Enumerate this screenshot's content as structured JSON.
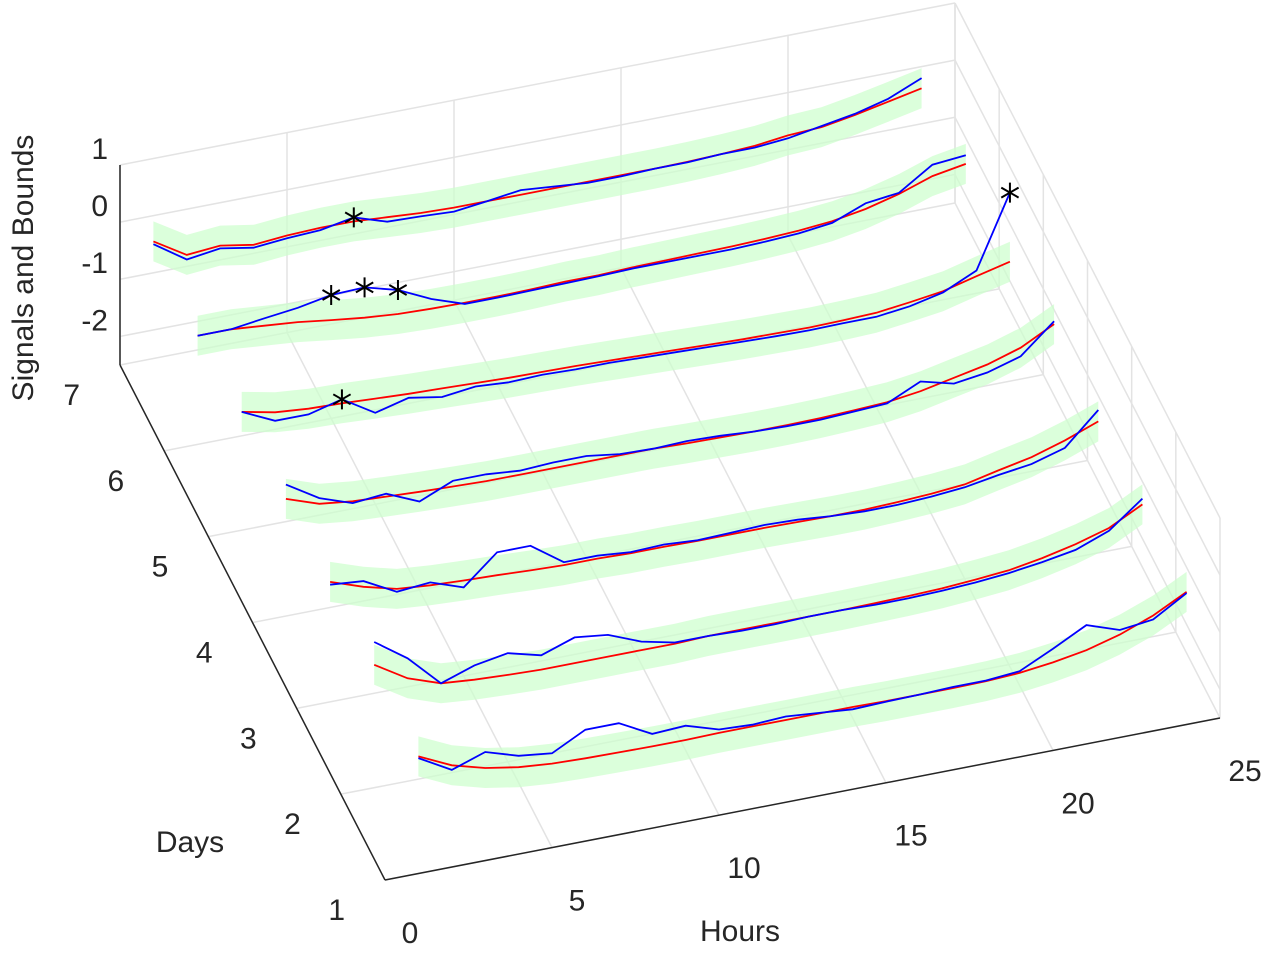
{
  "chart_data": {
    "type": "line3d",
    "xlabel": "Hours",
    "ylabel": "Days",
    "zlabel": "Signals and Bounds",
    "xlim": [
      0,
      25
    ],
    "xticks": [
      0,
      5,
      10,
      15,
      20,
      25
    ],
    "ylim": [
      1,
      7
    ],
    "yticks": [
      1,
      2,
      3,
      4,
      5,
      6,
      7
    ],
    "zlim": [
      -2.5,
      1
    ],
    "zticks": [
      -2,
      -1,
      0,
      1
    ],
    "grid": true,
    "signal_color": "#0000ff",
    "center_color": "#ff0000",
    "band_color": "#ccffcc",
    "anomaly_color": "#000000",
    "x": [
      1,
      2,
      3,
      4,
      5,
      6,
      7,
      8,
      9,
      10,
      11,
      12,
      13,
      14,
      15,
      16,
      17,
      18,
      19,
      20,
      21,
      22,
      23,
      24
    ],
    "series": [
      {
        "day": 1,
        "bound": 0.35,
        "center": [
          -0.45,
          -0.72,
          -0.88,
          -0.98,
          -1.03,
          -1.05,
          -1.06,
          -1.07,
          -1.07,
          -1.06,
          -1.06,
          -1.06,
          -1.06,
          -1.06,
          -1.07,
          -1.07,
          -1.07,
          -1.06,
          -1.03,
          -0.96,
          -0.86,
          -0.7,
          -0.48,
          -0.18
        ],
        "signal": [
          -0.48,
          -0.8,
          -0.6,
          -0.78,
          -0.85,
          -0.55,
          -0.55,
          -0.85,
          -0.82,
          -1.0,
          -1.03,
          -1.0,
          -1.05,
          -1.1,
          -1.08,
          -1.07,
          -1.05,
          -1.05,
          -1.0,
          -0.72,
          -0.42,
          -0.62,
          -0.55,
          -0.2
        ]
      },
      {
        "day": 2,
        "bound": 0.35,
        "center": [
          -0.35,
          -0.7,
          -0.9,
          -0.95,
          -0.98,
          -1.0,
          -1.0,
          -1.0,
          -1.0,
          -1.0,
          -0.98,
          -0.98,
          -0.98,
          -0.98,
          -0.98,
          -0.97,
          -0.96,
          -0.94,
          -0.9,
          -0.85,
          -0.75,
          -0.62,
          -0.45,
          -0.15
        ],
        "signal": [
          0.05,
          -0.35,
          -0.9,
          -0.7,
          -0.6,
          -0.75,
          -0.55,
          -0.62,
          -0.85,
          -0.98,
          -0.98,
          -1.0,
          -1.0,
          -0.98,
          -0.98,
          -1.0,
          -1.0,
          -0.98,
          -0.95,
          -0.9,
          -0.82,
          -0.72,
          -0.5,
          -0.05
        ]
      },
      {
        "day": 3,
        "bound": 0.35,
        "center": [
          -0.4,
          -0.6,
          -0.75,
          -0.8,
          -0.83,
          -0.85,
          -0.88,
          -0.9,
          -0.9,
          -0.92,
          -0.92,
          -0.93,
          -0.93,
          -0.93,
          -0.94,
          -0.95,
          -0.95,
          -0.93,
          -0.9,
          -0.85,
          -0.72,
          -0.6,
          -0.42,
          -0.2
        ],
        "signal": [
          -0.45,
          -0.5,
          -0.8,
          -0.75,
          -0.95,
          -0.45,
          -0.45,
          -0.85,
          -0.85,
          -0.9,
          -0.88,
          -0.92,
          -0.9,
          -0.88,
          -0.9,
          -0.95,
          -0.98,
          -0.98,
          -0.95,
          -0.9,
          -0.8,
          -0.72,
          -0.55,
          0.0
        ]
      },
      {
        "day": 4,
        "bound": 0.35,
        "center": [
          -0.45,
          -0.65,
          -0.72,
          -0.75,
          -0.78,
          -0.8,
          -0.82,
          -0.82,
          -0.82,
          -0.82,
          -0.82,
          -0.82,
          -0.84,
          -0.85,
          -0.86,
          -0.86,
          -0.85,
          -0.83,
          -0.8,
          -0.72,
          -0.6,
          -0.48,
          -0.3,
          0.0
        ],
        "signal": [
          -0.2,
          -0.55,
          -0.75,
          -0.7,
          -0.95,
          -0.7,
          -0.7,
          -0.75,
          -0.72,
          -0.72,
          -0.8,
          -0.82,
          -0.8,
          -0.82,
          -0.86,
          -0.88,
          -0.88,
          -0.85,
          -0.82,
          -0.55,
          -0.7,
          -0.62,
          -0.45,
          0.05
        ]
      },
      {
        "day": 5,
        "bound": 0.35,
        "center": [
          -0.43,
          -0.55,
          -0.6,
          -0.62,
          -0.65,
          -0.68,
          -0.7,
          -0.72,
          -0.74,
          -0.75,
          -0.76,
          -0.78,
          -0.8,
          -0.82,
          -0.84,
          -0.86,
          -0.87,
          -0.88,
          -0.87,
          -0.85,
          -0.78,
          -0.7,
          -0.55,
          -0.41
        ],
        "signal": [
          -0.43,
          -0.7,
          -0.7,
          -0.55,
          -0.9,
          -0.75,
          -0.85,
          -0.78,
          -0.82,
          -0.8,
          -0.82,
          -0.82,
          -0.84,
          -0.86,
          -0.88,
          -0.9,
          -0.92,
          -0.93,
          -0.92,
          -0.92,
          -0.85,
          -0.72,
          -0.45,
          0.8
        ]
      },
      {
        "day": 6,
        "bound": 0.35,
        "center": [
          -0.6,
          -0.6,
          -0.65,
          -0.7,
          -0.78,
          -0.85,
          -0.9,
          -0.92,
          -0.93,
          -0.93,
          -0.92,
          -0.9,
          -0.9,
          -0.88,
          -0.87,
          -0.86,
          -0.85,
          -0.83,
          -0.8,
          -0.75,
          -0.65,
          -0.5,
          -0.3,
          -0.2
        ],
        "signal": [
          -0.6,
          -0.6,
          -0.52,
          -0.45,
          -0.34,
          -0.32,
          -0.48,
          -0.75,
          -0.95,
          -0.95,
          -0.94,
          -0.93,
          -0.92,
          -0.9,
          -0.9,
          -0.9,
          -0.9,
          -0.88,
          -0.85,
          -0.78,
          -0.55,
          -0.48,
          -0.1,
          -0.05
        ]
      },
      {
        "day": 7,
        "bound": 0.35,
        "center": [
          -0.45,
          -0.8,
          -0.75,
          -0.85,
          -0.8,
          -0.78,
          -0.78,
          -0.82,
          -0.86,
          -0.88,
          -0.88,
          -0.88,
          -0.88,
          -0.88,
          -0.88,
          -0.88,
          -0.87,
          -0.85,
          -0.82,
          -0.75,
          -0.72,
          -0.62,
          -0.5,
          -0.38
        ],
        "signal": [
          -0.5,
          -0.88,
          -0.8,
          -0.9,
          -0.85,
          -0.82,
          -0.71,
          -0.9,
          -0.92,
          -0.95,
          -0.88,
          -0.8,
          -0.85,
          -0.9,
          -0.9,
          -0.88,
          -0.88,
          -0.85,
          -0.85,
          -0.8,
          -0.7,
          -0.6,
          -0.45,
          -0.2
        ]
      }
    ],
    "anomalies": [
      {
        "day": 7,
        "hour": 7,
        "value": -0.71
      },
      {
        "day": 6,
        "hour": 5,
        "value": -0.34
      },
      {
        "day": 6,
        "hour": 6,
        "value": -0.32
      },
      {
        "day": 6,
        "hour": 7,
        "value": -0.48
      },
      {
        "day": 5,
        "hour": 4,
        "value": -0.55
      },
      {
        "day": 5,
        "hour": 24,
        "value": 0.8
      }
    ]
  }
}
